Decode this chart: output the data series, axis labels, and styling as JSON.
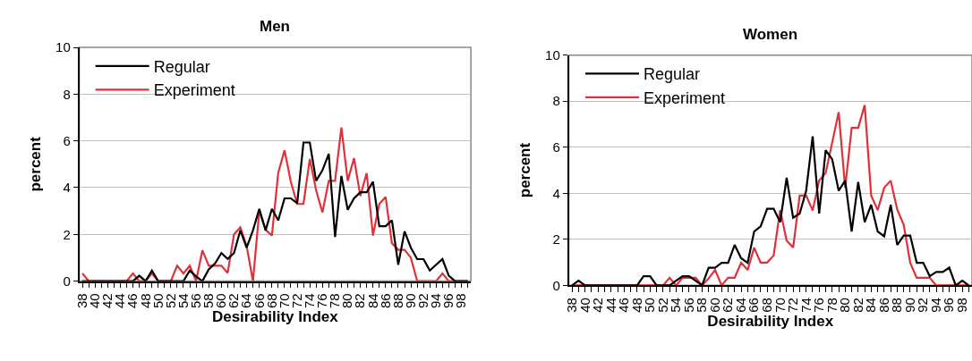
{
  "chart_data": [
    {
      "type": "line",
      "title": "Men",
      "xlabel": "Desirability Index",
      "ylabel": "percent",
      "x": [
        38,
        39,
        40,
        41,
        42,
        43,
        44,
        45,
        46,
        47,
        48,
        49,
        50,
        51,
        52,
        53,
        54,
        55,
        56,
        57,
        58,
        59,
        60,
        61,
        62,
        63,
        64,
        65,
        66,
        67,
        68,
        69,
        70,
        71,
        72,
        73,
        74,
        75,
        76,
        77,
        78,
        79,
        80,
        81,
        82,
        83,
        84,
        85,
        86,
        87,
        88,
        89,
        90,
        91,
        92,
        93,
        94,
        95,
        96,
        97,
        98,
        99
      ],
      "series": [
        {
          "name": "Regular",
          "color": "#000000",
          "values": [
            0,
            0,
            0,
            0,
            0,
            0,
            0,
            0,
            0,
            0.23,
            0,
            0.45,
            0,
            0,
            0,
            0,
            0,
            0.45,
            0.2,
            0,
            0.5,
            0.76,
            1.2,
            0.95,
            1.2,
            2.17,
            1.43,
            2.17,
            3.09,
            2.17,
            3.09,
            2.6,
            3.54,
            3.54,
            3.33,
            5.93,
            5.93,
            4.29,
            4.74,
            5.45,
            1.89,
            4.5,
            3.05,
            3.54,
            3.8,
            3.8,
            4.25,
            2.35,
            2.35,
            2.6,
            0.7,
            2.13,
            1.43,
            0.94,
            0.94,
            0.45,
            0.7,
            0.94,
            0.23,
            0,
            0,
            0
          ]
        },
        {
          "name": "Experiment",
          "color": "#e0303a",
          "values": [
            0.33,
            0,
            0,
            0,
            0,
            0,
            0,
            0,
            0.33,
            0,
            0,
            0.33,
            0,
            0,
            0,
            0.66,
            0.33,
            0.66,
            0,
            1.32,
            0.66,
            0.66,
            0.66,
            0.35,
            2.0,
            2.3,
            1.5,
            0,
            3.0,
            2.2,
            1.95,
            4.62,
            5.6,
            4.25,
            3.3,
            3.3,
            5.23,
            3.88,
            2.94,
            4.29,
            4.29,
            6.58,
            4.29,
            5.26,
            3.64,
            4.62,
            1.95,
            3.3,
            3.6,
            1.62,
            1.34,
            1.34,
            1.0,
            0,
            0,
            0,
            0,
            0.33,
            0,
            0,
            0,
            0
          ]
        }
      ],
      "xlim": [
        37.5,
        99.5
      ],
      "ylim": [
        0,
        10
      ],
      "yticks": [
        0,
        2,
        4,
        6,
        8,
        10
      ],
      "xticks": [
        38,
        {
          "value": 39,
          "label": null
        },
        40,
        {
          "value": 41,
          "label": null
        },
        42,
        {
          "value": 43,
          "label": null
        },
        44,
        {
          "value": 45,
          "label": null
        },
        46,
        {
          "value": 47,
          "label": null
        },
        48,
        {
          "value": 49,
          "label": null
        },
        50,
        {
          "value": 51,
          "label": null
        },
        52,
        {
          "value": 53,
          "label": null
        },
        54,
        {
          "value": 55,
          "label": null
        },
        56,
        {
          "value": 57,
          "label": null
        },
        58,
        {
          "value": 59,
          "label": null
        },
        60,
        {
          "value": 61,
          "label": null
        },
        62,
        {
          "value": 63,
          "label": null
        },
        64,
        {
          "value": 65,
          "label": null
        },
        66,
        {
          "value": 67,
          "label": null
        },
        68,
        {
          "value": 69,
          "label": null
        },
        70,
        {
          "value": 71,
          "label": null
        },
        72,
        {
          "value": 73,
          "label": null
        },
        74,
        {
          "value": 75,
          "label": null
        },
        76,
        {
          "value": 77,
          "label": null
        },
        78,
        {
          "value": 79,
          "label": null
        },
        80,
        {
          "value": 81,
          "label": null
        },
        82,
        {
          "value": 83,
          "label": null
        },
        84,
        {
          "value": 85,
          "label": null
        },
        86,
        {
          "value": 87,
          "label": null
        },
        88,
        {
          "value": 89,
          "label": null
        },
        90,
        {
          "value": 91,
          "label": null
        },
        92,
        {
          "value": 93,
          "label": null
        },
        94,
        {
          "value": 95,
          "label": null
        },
        96,
        {
          "value": 97,
          "label": null
        },
        98,
        {
          "value": 99,
          "label": null
        }
      ],
      "grid": "y",
      "legend": "top left",
      "marker": "none",
      "line_style": "solid"
    },
    {
      "type": "line",
      "title": "Women",
      "xlabel": "Desirability Index",
      "ylabel": "percent",
      "x": [
        38,
        39,
        40,
        41,
        42,
        43,
        44,
        45,
        46,
        47,
        48,
        49,
        50,
        51,
        52,
        53,
        54,
        55,
        56,
        57,
        58,
        59,
        60,
        61,
        62,
        63,
        64,
        65,
        66,
        67,
        68,
        69,
        70,
        71,
        72,
        73,
        74,
        75,
        76,
        77,
        78,
        79,
        80,
        81,
        82,
        83,
        84,
        85,
        86,
        87,
        88,
        89,
        90,
        91,
        92,
        93,
        94,
        95,
        96,
        97,
        98,
        99
      ],
      "series": [
        {
          "name": "Regular",
          "color": "#000000",
          "values": [
            0,
            0.2,
            0,
            0,
            0,
            0,
            0,
            0,
            0,
            0,
            0,
            0.4,
            0.4,
            0,
            0,
            0,
            0.2,
            0.4,
            0.4,
            0.2,
            0,
            0.77,
            0.77,
            0.98,
            0.98,
            1.76,
            1.18,
            0.98,
            2.34,
            2.56,
            3.33,
            3.33,
            2.75,
            4.67,
            2.94,
            3.12,
            4.11,
            6.47,
            3.12,
            5.87,
            5.48,
            4.11,
            4.55,
            2.34,
            4.49,
            2.75,
            3.5,
            2.34,
            2.13,
            3.5,
            1.76,
            2.16,
            2.16,
            0.98,
            0.98,
            0.4,
            0.58,
            0.58,
            0.77,
            0,
            0.2,
            0
          ]
        },
        {
          "name": "Experiment",
          "color": "#e0303a",
          "values": [
            0,
            0,
            0,
            0,
            0,
            0,
            0,
            0,
            0,
            0,
            0,
            0,
            0,
            0,
            0,
            0.33,
            0,
            0.33,
            0.33,
            0.33,
            0,
            0.3,
            0.67,
            0,
            0.33,
            0.33,
            0.98,
            0.67,
            1.64,
            0.99,
            0.99,
            1.3,
            3.27,
            1.95,
            1.64,
            3.9,
            3.9,
            3.25,
            4.55,
            4.88,
            6.2,
            7.52,
            4.24,
            6.84,
            6.84,
            7.83,
            3.9,
            3.27,
            4.24,
            4.55,
            3.3,
            2.63,
            0.98,
            0.33,
            0.33,
            0.33,
            0,
            0,
            0,
            0,
            0,
            0
          ]
        }
      ],
      "xlim": [
        37.5,
        99.5
      ],
      "ylim": [
        0,
        10
      ],
      "yticks": [
        0,
        2,
        4,
        6,
        8,
        10
      ],
      "xticks": [
        38,
        {
          "value": 39,
          "label": null
        },
        40,
        {
          "value": 41,
          "label": null
        },
        42,
        {
          "value": 43,
          "label": null
        },
        44,
        {
          "value": 45,
          "label": null
        },
        46,
        {
          "value": 47,
          "label": null
        },
        48,
        {
          "value": 49,
          "label": null
        },
        50,
        {
          "value": 51,
          "label": null
        },
        52,
        {
          "value": 53,
          "label": null
        },
        54,
        {
          "value": 55,
          "label": null
        },
        56,
        {
          "value": 57,
          "label": null
        },
        58,
        {
          "value": 59,
          "label": null
        },
        60,
        {
          "value": 61,
          "label": null
        },
        62,
        {
          "value": 63,
          "label": null
        },
        64,
        {
          "value": 65,
          "label": null
        },
        66,
        {
          "value": 67,
          "label": null
        },
        68,
        {
          "value": 69,
          "label": null
        },
        70,
        {
          "value": 71,
          "label": null
        },
        72,
        {
          "value": 73,
          "label": null
        },
        74,
        {
          "value": 75,
          "label": null
        },
        76,
        {
          "value": 77,
          "label": null
        },
        78,
        {
          "value": 79,
          "label": null
        },
        80,
        {
          "value": 81,
          "label": null
        },
        82,
        {
          "value": 83,
          "label": null
        },
        84,
        {
          "value": 85,
          "label": null
        },
        86,
        {
          "value": 87,
          "label": null
        },
        88,
        {
          "value": 89,
          "label": null
        },
        90,
        {
          "value": 91,
          "label": null
        },
        92,
        {
          "value": 93,
          "label": null
        },
        94,
        {
          "value": 95,
          "label": null
        },
        96,
        {
          "value": 97,
          "label": null
        },
        98,
        {
          "value": 99,
          "label": null
        }
      ],
      "grid": "y",
      "legend": "top left",
      "marker": "none",
      "line_style": "solid"
    }
  ]
}
